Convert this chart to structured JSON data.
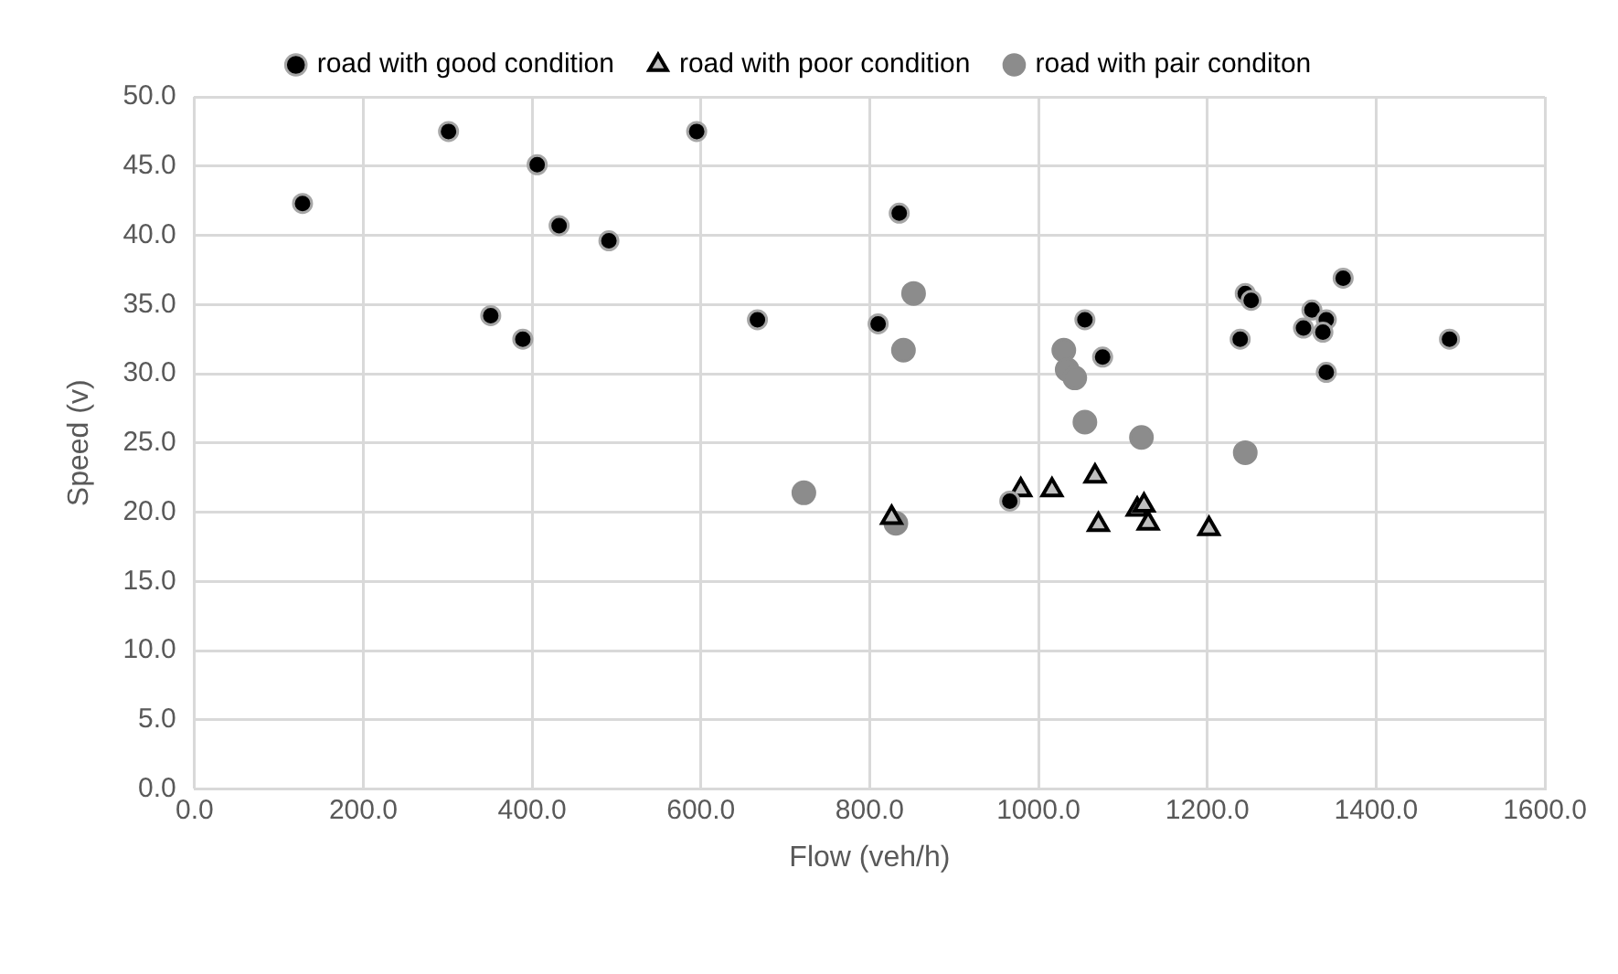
{
  "chart_data": {
    "type": "scatter",
    "xlabel": "Flow (veh/h)",
    "ylabel": "Speed (v)",
    "xlim": [
      0,
      1600
    ],
    "xticks": [
      {
        "value": 0,
        "label": "0.0"
      },
      {
        "value": 200,
        "label": "200.0"
      },
      {
        "value": 400,
        "label": "400.0"
      },
      {
        "value": 600,
        "label": "600.0"
      },
      {
        "value": 800,
        "label": "800.0"
      },
      {
        "value": 1000,
        "label": "1000.0"
      },
      {
        "value": 1200,
        "label": "1200.0"
      },
      {
        "value": 1400,
        "label": "1400.0"
      },
      {
        "value": 1600,
        "label": "1600.0"
      }
    ],
    "ylim": [
      0,
      50
    ],
    "yticks": [
      {
        "value": 0,
        "label": "0.0"
      },
      {
        "value": 5,
        "label": "5.0"
      },
      {
        "value": 10,
        "label": "10.0"
      },
      {
        "value": 15,
        "label": "15.0"
      },
      {
        "value": 20,
        "label": "20.0"
      },
      {
        "value": 25,
        "label": "25.0"
      },
      {
        "value": 30,
        "label": "30.0"
      },
      {
        "value": 35,
        "label": "35.0"
      },
      {
        "value": 40,
        "label": "40.0"
      },
      {
        "value": 45,
        "label": "45.0"
      },
      {
        "value": 50,
        "label": "50.0"
      }
    ],
    "grid": true,
    "legend": "top",
    "series": [
      {
        "name": "road with good condition",
        "color": "#000000",
        "marker": "circle",
        "x": [
          128,
          301,
          406,
          432,
          491,
          351,
          389,
          595,
          667,
          835,
          810,
          1055,
          1076,
          966,
          1245,
          1252,
          1239,
          1361,
          1324,
          1341,
          1314,
          1337,
          1341,
          1487
        ],
        "values": [
          42.3,
          47.5,
          45.1,
          40.7,
          39.6,
          34.2,
          32.5,
          47.5,
          33.9,
          41.6,
          33.6,
          33.9,
          31.2,
          20.8,
          35.8,
          35.3,
          32.5,
          36.9,
          34.6,
          33.9,
          33.3,
          33.0,
          30.1,
          32.5
        ]
      },
      {
        "name": "road with poor condition",
        "color": "#bfbfbf",
        "marker": "triangle",
        "x": [
          826,
          979,
          1016,
          1067,
          1071,
          1117,
          1125,
          1130,
          1202
        ],
        "values": [
          19.6,
          21.6,
          21.6,
          22.6,
          19.1,
          20.2,
          20.5,
          19.2,
          18.8
        ]
      },
      {
        "name": "road with pair conditon",
        "color": "#8c8c8c",
        "marker": "circle",
        "x": [
          722,
          852,
          840,
          831,
          1030,
          1034,
          1043,
          1055,
          1122,
          1245
        ],
        "values": [
          21.4,
          35.8,
          31.7,
          19.2,
          31.7,
          30.3,
          29.7,
          26.5,
          25.4,
          24.3
        ]
      }
    ]
  }
}
